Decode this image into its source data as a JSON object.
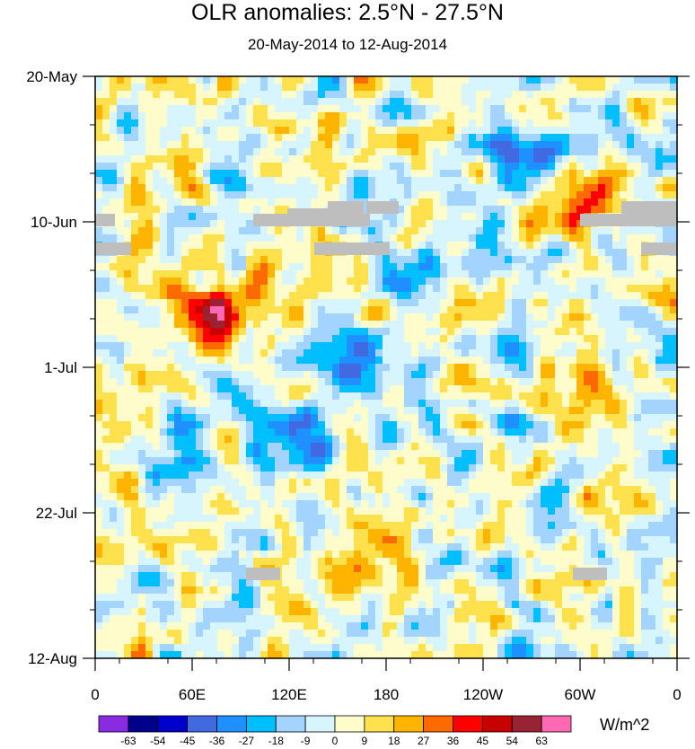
{
  "chart_data": {
    "type": "heatmap",
    "title": "OLR anomalies: 2.5°N - 27.5°N",
    "subtitle": "20-May-2014 to 12-Aug-2014",
    "x_axis": {
      "tick_labels": [
        "0",
        "60E",
        "120E",
        "180",
        "120W",
        "60W",
        "0"
      ],
      "range_degrees_east": [
        0,
        360
      ]
    },
    "y_axis": {
      "tick_labels": [
        "20-May",
        "10-Jun",
        "1-Jul",
        "22-Jul",
        "12-Aug"
      ],
      "range": [
        "2014-05-20",
        "2014-08-12"
      ],
      "direction": "time increases downward"
    },
    "colorbar": {
      "units": "W/m^2",
      "labels": [
        "-63",
        "-54",
        "-45",
        "-36",
        "-27",
        "-18",
        "-9",
        "0",
        "9",
        "18",
        "27",
        "36",
        "45",
        "54",
        "63"
      ],
      "colors": [
        "#8a2be2",
        "#00008b",
        "#0000cd",
        "#4169e1",
        "#1e90ff",
        "#00bfff",
        "#a3d3ff",
        "#d6f5ff",
        "#fffccc",
        "#ffe14d",
        "#ffb400",
        "#ff6a00",
        "#ff0000",
        "#c80000",
        "#992233",
        "#ff69b4"
      ],
      "missing_color": "#bebebe"
    },
    "field_description": "Noisy alternating positive (yellow/orange/red) and negative (blue) OLR anomalies; notable strong positive near 70E late June and diagonal negative streaks from 120E-180 in July."
  }
}
